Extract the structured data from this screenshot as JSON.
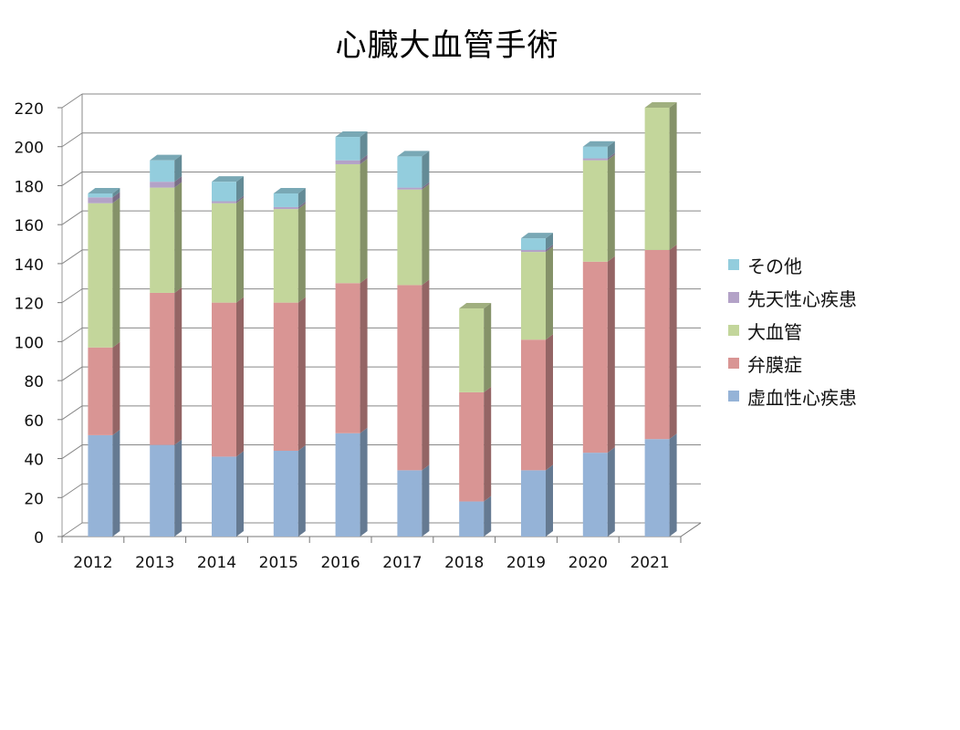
{
  "chart_data": {
    "type": "bar",
    "stacked": true,
    "three_d": true,
    "title": "心臓大血管手術",
    "xlabel": "",
    "ylabel": "",
    "ylim": [
      0,
      220
    ],
    "yticks": [
      0,
      20,
      40,
      60,
      80,
      100,
      120,
      140,
      160,
      180,
      200,
      220
    ],
    "grid": true,
    "legend_position": "right",
    "categories": [
      "2012",
      "2013",
      "2014",
      "2015",
      "2016",
      "2017",
      "2018",
      "2019",
      "2020",
      "2021"
    ],
    "series": [
      {
        "name": "虚血性心疾患",
        "color": "#95b3d7",
        "values": [
          52,
          47,
          41,
          44,
          53,
          34,
          18,
          34,
          43,
          50
        ]
      },
      {
        "name": "弁膜症",
        "color": "#d99594",
        "values": [
          45,
          78,
          79,
          76,
          77,
          95,
          56,
          67,
          98,
          97
        ]
      },
      {
        "name": "大血管",
        "color": "#c3d69b",
        "values": [
          74,
          54,
          51,
          48,
          61,
          49,
          43,
          45,
          52,
          73
        ]
      },
      {
        "name": "先天性心疾患",
        "color": "#b3a2c7",
        "values": [
          3,
          3,
          1,
          1,
          2,
          1,
          0,
          1,
          1,
          0
        ]
      },
      {
        "name": "その他",
        "color": "#93cddd",
        "values": [
          2,
          11,
          10,
          7,
          12,
          16,
          0,
          6,
          6,
          0
        ]
      }
    ]
  }
}
